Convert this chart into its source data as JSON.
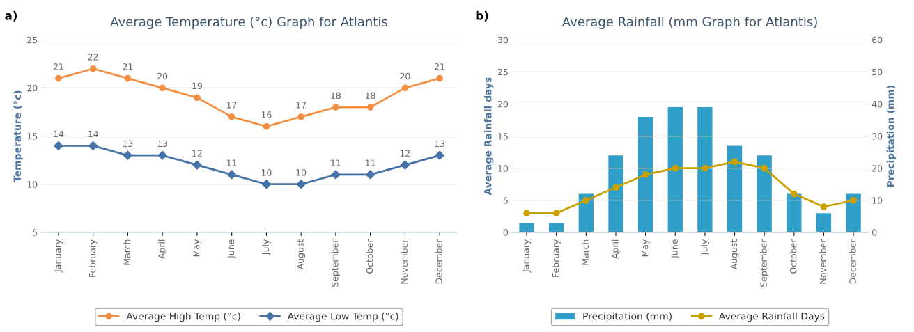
{
  "chart_data": [
    {
      "type": "line",
      "title": "Average Temperature (°c) Graph for Atlantis",
      "ylabel": "Temperature (°c)",
      "annotations": [
        "a)"
      ],
      "categories": [
        "January",
        "February",
        "March",
        "April",
        "May",
        "June",
        "July",
        "August",
        "September",
        "October",
        "November",
        "December"
      ],
      "series": [
        {
          "name": "Average High Temp (°c)",
          "color": "#f28f43",
          "marker": "circle",
          "values": [
            21,
            22,
            21,
            20,
            19,
            17,
            16,
            17,
            18,
            18,
            20,
            21
          ]
        },
        {
          "name": "Average Low Temp (°c)",
          "color": "#4572a7",
          "marker": "diamond",
          "values": [
            14,
            14,
            13,
            13,
            12,
            11,
            10,
            10,
            11,
            11,
            12,
            13
          ]
        }
      ],
      "ylim": [
        5,
        25
      ],
      "yticks": [
        5,
        10,
        15,
        20,
        25
      ],
      "grid": "y",
      "legend": "bottom",
      "data_labels": true
    },
    {
      "type": "bar",
      "title": "Average Rainfall (mm Graph for Atlantis)",
      "ylabel": "Average Rainfall days",
      "y2label": "Precipitation (mm)",
      "annotations": [
        "b)"
      ],
      "categories": [
        "January",
        "February",
        "March",
        "April",
        "May",
        "June",
        "July",
        "August",
        "September",
        "October",
        "November",
        "December"
      ],
      "series": [
        {
          "name": "Precipitation (mm)",
          "type": "bar",
          "axis": "y2",
          "color": "#2f9fc9",
          "values": [
            3,
            3,
            12,
            24,
            36,
            39,
            39,
            27,
            24,
            12,
            6,
            12
          ]
        },
        {
          "name": "Average Rainfall Days",
          "type": "line",
          "color": "#c9a000",
          "marker": "circle",
          "values": [
            3,
            3,
            5,
            7,
            9,
            10,
            10,
            11,
            10,
            6,
            4,
            5
          ]
        }
      ],
      "ylim": [
        0,
        30
      ],
      "yticks": [
        0,
        5,
        10,
        15,
        20,
        25,
        30
      ],
      "y2lim": [
        0,
        60
      ],
      "y2ticks": [
        0,
        10,
        20,
        30,
        40,
        50,
        60
      ],
      "grid": "y",
      "legend": "bottom"
    }
  ]
}
